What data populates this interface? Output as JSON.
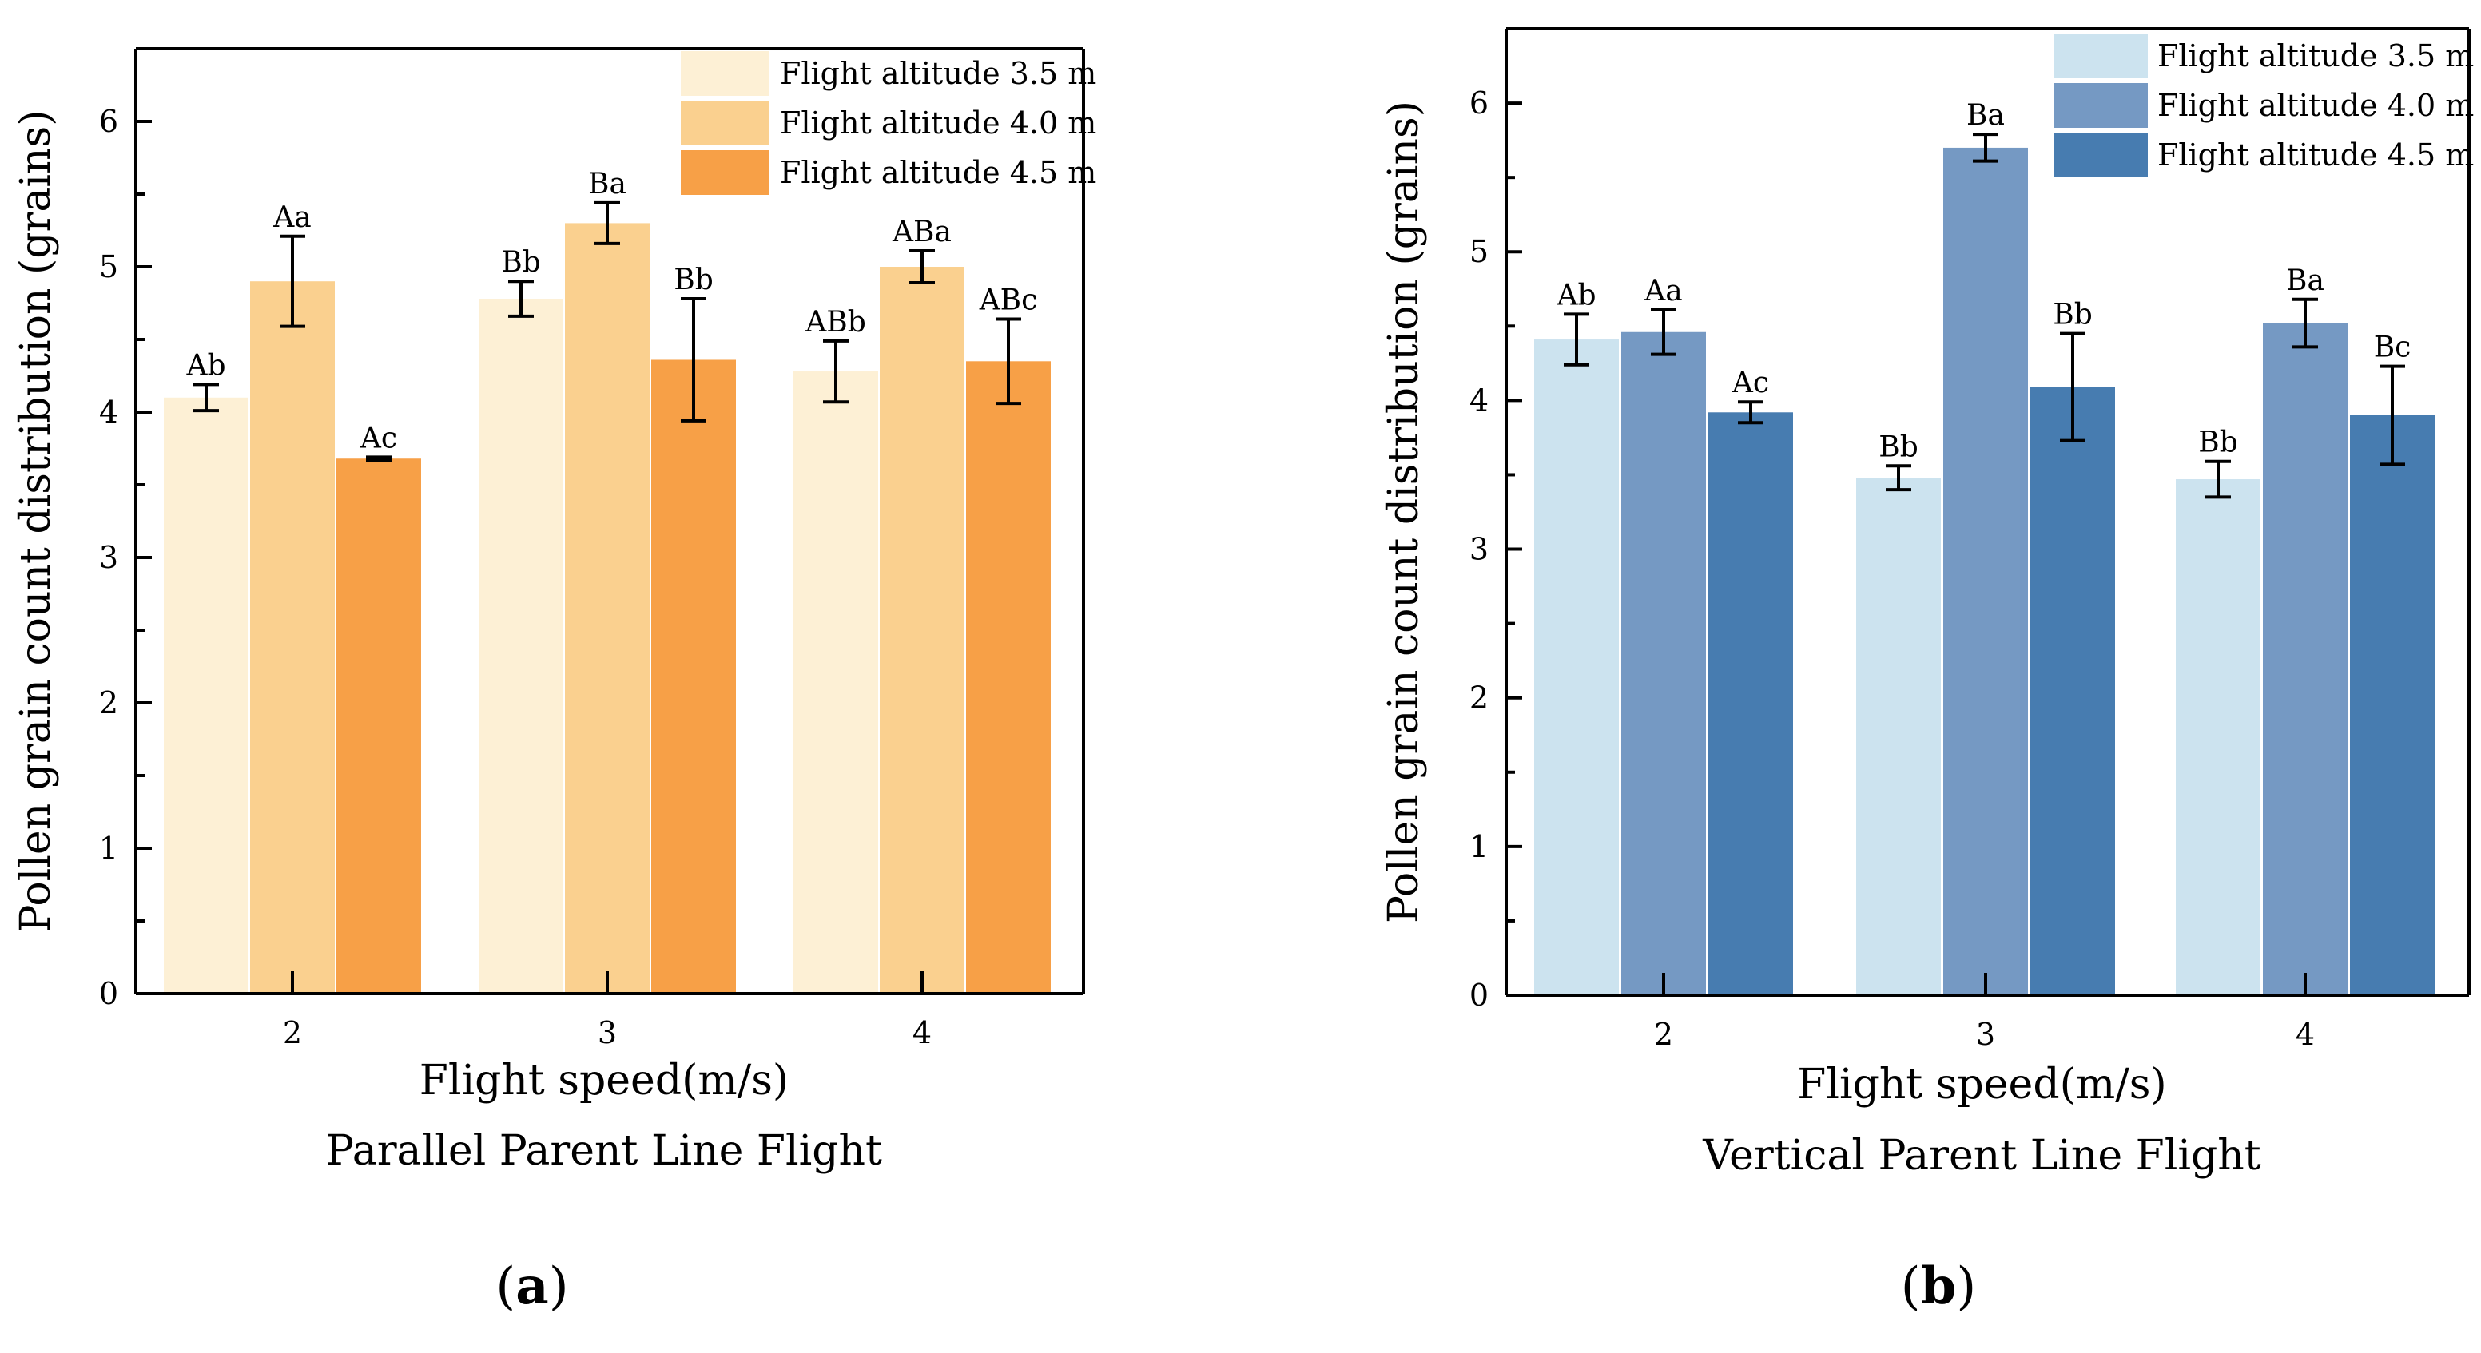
{
  "chart_data": [
    {
      "type": "bar",
      "panel_label": "a",
      "title": "Parallel Parent Line Flight",
      "xlabel": "Flight speed(m/s)",
      "ylabel": "Pollen grain count distribution (grains)",
      "categories": [
        "2",
        "3",
        "4"
      ],
      "ylim": [
        0,
        6.5
      ],
      "yticks": [
        "0",
        "1",
        "2",
        "3",
        "4",
        "5",
        "6"
      ],
      "series": [
        {
          "name": "Flight altitude 3.5 m",
          "color": "#fdf0d5",
          "values": [
            4.1,
            4.78,
            4.28
          ],
          "errors": [
            0.09,
            0.12,
            0.21
          ],
          "labels": [
            "Ab",
            "Bb",
            "ABb"
          ]
        },
        {
          "name": "Flight altitude 4.0 m",
          "color": "#fad08f",
          "values": [
            4.9,
            5.3,
            5.0
          ],
          "errors": [
            0.31,
            0.14,
            0.11
          ],
          "labels": [
            "Aa",
            "Ba",
            "ABa"
          ]
        },
        {
          "name": "Flight altitude 4.5 m",
          "color": "#f7a047",
          "values": [
            3.68,
            4.36,
            4.35
          ],
          "errors": [
            0.01,
            0.42,
            0.29
          ],
          "labels": [
            "Ac",
            "Bb",
            "ABc"
          ]
        }
      ],
      "legend_position": "top-right"
    },
    {
      "type": "bar",
      "panel_label": "b",
      "title": "Vertical Parent Line Flight",
      "xlabel": "Flight speed(m/s)",
      "ylabel": "Pollen grain count distribution (grains)",
      "categories": [
        "2",
        "3",
        "4"
      ],
      "ylim": [
        0,
        6.5
      ],
      "yticks": [
        "0",
        "1",
        "2",
        "3",
        "4",
        "5",
        "6"
      ],
      "series": [
        {
          "name": "Flight altitude 3.5 m",
          "color": "#cce3ef",
          "values": [
            4.41,
            3.48,
            3.47
          ],
          "errors": [
            0.17,
            0.08,
            0.12
          ],
          "labels": [
            "Ab",
            "Bb",
            "Bb"
          ]
        },
        {
          "name": "Flight altitude 4.0 m",
          "color": "#7599c3",
          "values": [
            4.46,
            5.7,
            4.52
          ],
          "errors": [
            0.15,
            0.09,
            0.16
          ],
          "labels": [
            "Aa",
            "Ba",
            "Ba"
          ]
        },
        {
          "name": "Flight altitude 4.5 m",
          "color": "#477cb0",
          "values": [
            3.92,
            4.09,
            3.9
          ],
          "errors": [
            0.07,
            0.36,
            0.33
          ],
          "labels": [
            "Ac",
            "Bb",
            "Bc"
          ]
        }
      ],
      "legend_position": "top-right"
    }
  ]
}
